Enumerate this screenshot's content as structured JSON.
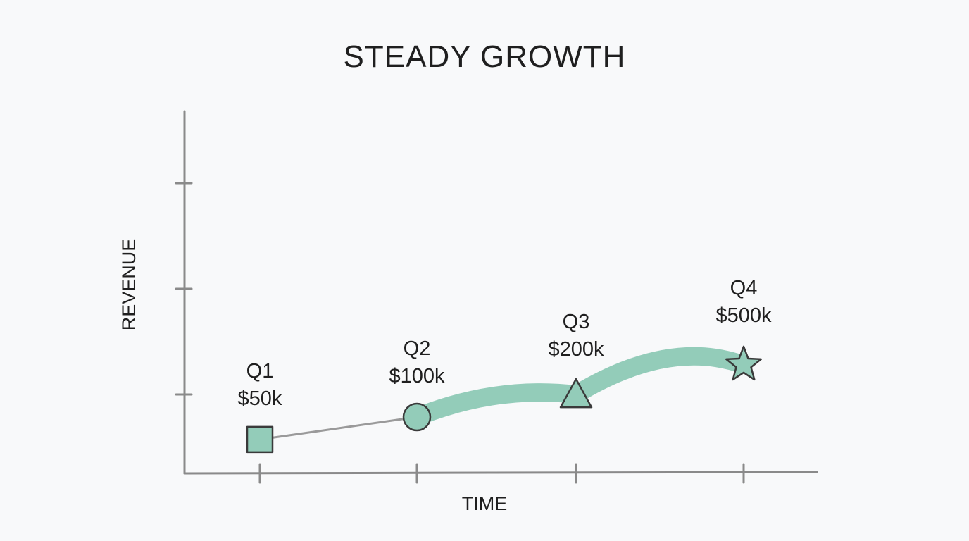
{
  "colors": {
    "accent": "#93ccb9",
    "axis": "#8a8a8a",
    "thin_line": "#9a9a9a",
    "marker_stroke": "#3a3a3a",
    "background": "#f8f9fa"
  },
  "chart_data": {
    "type": "line",
    "title": "STEADY GROWTH",
    "xlabel": "TIME",
    "ylabel": "REVENUE",
    "categories": [
      "Q1",
      "Q2",
      "Q3",
      "Q4"
    ],
    "values": [
      50,
      100,
      200,
      500
    ],
    "value_labels": [
      "$50k",
      "$100k",
      "$200k",
      "$500k"
    ],
    "markers": [
      "square",
      "circle",
      "triangle",
      "star"
    ],
    "grid": false,
    "legend": "none"
  }
}
